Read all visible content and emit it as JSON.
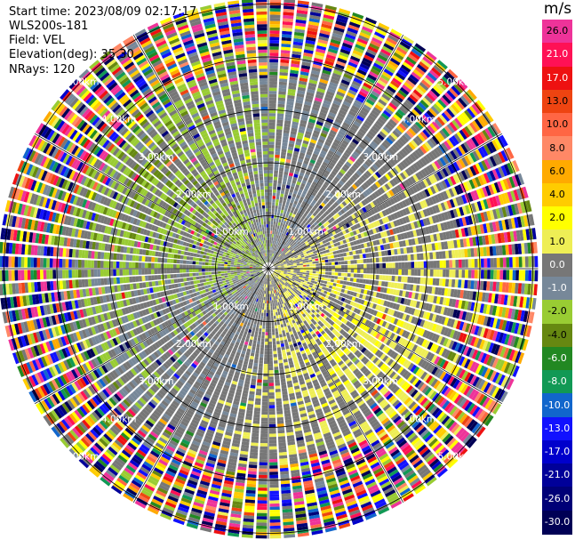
{
  "meta": {
    "start_time": "Start time: 2023/08/09 02:17:17",
    "instrument": "WLS200s-181",
    "field": "Field: VEL",
    "elevation": "Elevation(deg): 35.30",
    "nrays": "NRays: 120"
  },
  "colorbar": {
    "unit": "m/s",
    "ticks": [
      "26.0",
      "21.0",
      "17.0",
      "13.0",
      "10.0",
      "8.0",
      "6.0",
      "4.0",
      "2.0",
      "1.0",
      "0.0",
      "-1.0",
      "-2.0",
      "-4.0",
      "-6.0",
      "-8.0",
      "-10.0",
      "-13.0",
      "-17.0",
      "-21.0",
      "-26.0",
      "-30.0"
    ],
    "colors": [
      "#ee3399",
      "#ff1155",
      "#ee1111",
      "#ee4411",
      "#ff6644",
      "#ff8866",
      "#ffaa00",
      "#ffcc00",
      "#ffff00",
      "#eeee55",
      "#777777",
      "#778899",
      "#99cc33",
      "#668811",
      "#228822",
      "#119955",
      "#1166cc",
      "#1111ff",
      "#0000cc",
      "#000099",
      "#000077",
      "#000055"
    ]
  },
  "chart_data": {
    "type": "polar-ppi",
    "field": "VEL",
    "unit": "m/s",
    "n_rays": 120,
    "range_rings_km": [
      1.0,
      2.0,
      3.0,
      4.0,
      5.0
    ],
    "ring_labels": [
      "1.00km",
      "2.00km",
      "3.00km",
      "4.00km",
      "5.00km"
    ],
    "max_range_km": 5.1,
    "velocity_pattern": {
      "positive_sector_center_deg": 120,
      "negative_sector_center_deg": 300,
      "noise_beyond_km": 3.6
    }
  }
}
